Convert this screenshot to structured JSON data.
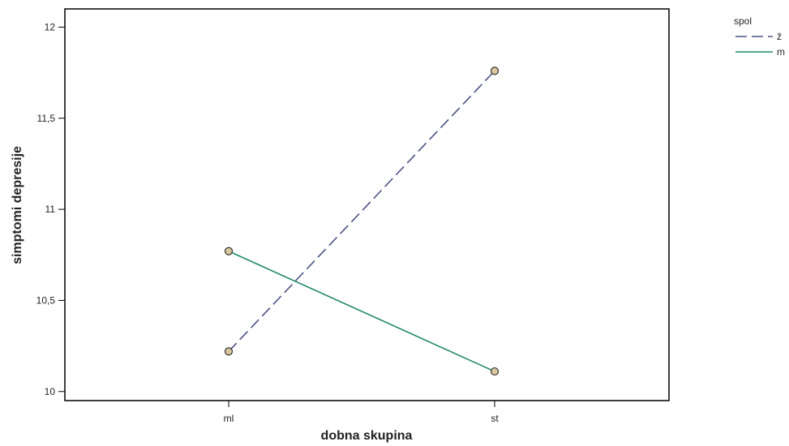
{
  "chart_data": {
    "type": "line",
    "title": "",
    "xlabel": "dobna skupina",
    "ylabel": "simptomi depresije",
    "categories": [
      "ml",
      "st"
    ],
    "ylim": [
      9.95,
      12.1
    ],
    "yticks": [
      10,
      10.5,
      11,
      11.5,
      12
    ],
    "ytick_labels": [
      "10",
      "10,5",
      "11",
      "11,5",
      "12"
    ],
    "legend": {
      "title": "spol",
      "placement": "top-right outside"
    },
    "series": [
      {
        "name": "ž",
        "values": [
          10.22,
          11.76
        ],
        "color": "#4a5283",
        "dashed": true
      },
      {
        "name": "m",
        "values": [
          10.77,
          10.11
        ],
        "color": "#1f8a6a",
        "dashed": false
      }
    ],
    "marker_color": "#d9c69c",
    "grid": false
  }
}
